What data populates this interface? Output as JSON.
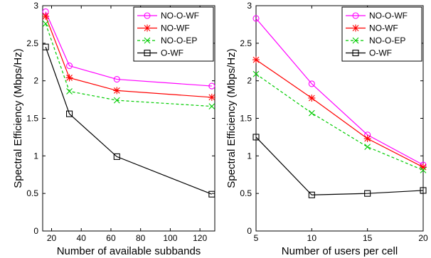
{
  "chart_data": [
    {
      "type": "line",
      "xlabel": "Number of available subbands",
      "ylabel": "Spectral Efficiency (Mbps/Hz)",
      "xlim": [
        14,
        130
      ],
      "ylim": [
        0,
        3
      ],
      "xticks": [
        20,
        40,
        60,
        80,
        100,
        120
      ],
      "yticks": [
        0,
        0.5,
        1,
        1.5,
        2,
        2.5,
        3
      ],
      "grid": false,
      "legend_position": "top-right",
      "x": [
        16,
        32,
        64,
        128
      ],
      "series": [
        {
          "name": "NO-O-WF",
          "color": "#ff00ff",
          "marker": "circle",
          "dash": "solid",
          "values": [
            2.92,
            2.2,
            2.02,
            1.93
          ]
        },
        {
          "name": "NO-WF",
          "color": "#ff0000",
          "marker": "asterisk",
          "dash": "solid",
          "values": [
            2.86,
            2.04,
            1.87,
            1.78
          ]
        },
        {
          "name": "NO-O-EP",
          "color": "#00cc00",
          "marker": "x",
          "dash": "dashed",
          "values": [
            2.76,
            1.86,
            1.74,
            1.66
          ]
        },
        {
          "name": "O-WF",
          "color": "#000000",
          "marker": "square",
          "dash": "solid",
          "values": [
            2.45,
            1.56,
            0.99,
            0.49
          ]
        }
      ]
    },
    {
      "type": "line",
      "xlabel": "Number of users per cell",
      "ylabel": "Spectral Efficiency (Mbps/Hz)",
      "xlim": [
        5,
        20
      ],
      "ylim": [
        0,
        3
      ],
      "xticks": [
        5,
        10,
        15,
        20
      ],
      "yticks": [
        0,
        0.5,
        1,
        1.5,
        2,
        2.5,
        3
      ],
      "grid": false,
      "legend_position": "top-right",
      "x": [
        5,
        10,
        15,
        20
      ],
      "series": [
        {
          "name": "NO-O-WF",
          "color": "#ff00ff",
          "marker": "circle",
          "dash": "solid",
          "values": [
            2.83,
            1.96,
            1.28,
            0.88
          ]
        },
        {
          "name": "NO-WF",
          "color": "#ff0000",
          "marker": "asterisk",
          "dash": "solid",
          "values": [
            2.28,
            1.77,
            1.23,
            0.85
          ]
        },
        {
          "name": "NO-O-EP",
          "color": "#00cc00",
          "marker": "x",
          "dash": "dashed",
          "values": [
            2.09,
            1.57,
            1.12,
            0.81
          ]
        },
        {
          "name": "O-WF",
          "color": "#000000",
          "marker": "square",
          "dash": "solid",
          "values": [
            1.25,
            0.48,
            0.5,
            0.54
          ]
        }
      ]
    }
  ]
}
